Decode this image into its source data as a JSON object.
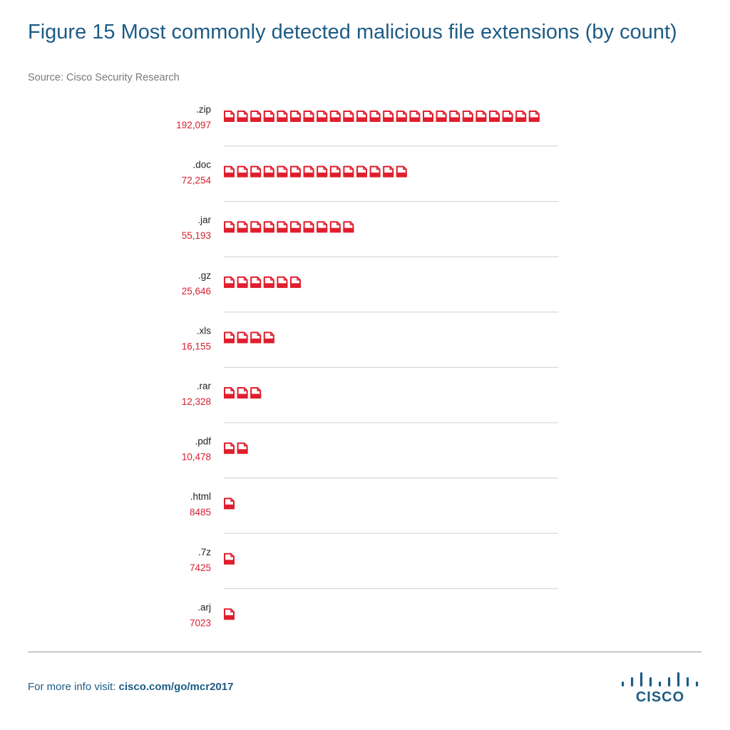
{
  "header": {
    "title": "Figure 15  Most commonly detected malicious file extensions (by count)",
    "source": "Source: Cisco Security Research"
  },
  "footer": {
    "prefix": "For more info visit: ",
    "url": "cisco.com/go/mcr2017",
    "logo_text": "CISCO"
  },
  "colors": {
    "icon": "#e01e2d",
    "value_label": "#d6202f",
    "category_label": "#222222",
    "separator": "#d0d0d0"
  },
  "chart_data": {
    "type": "bar",
    "style": "pictogram",
    "icon": "file-icon",
    "title": "Most commonly detected malicious file extensions (by count)",
    "categories": [
      ".zip",
      ".doc",
      ".jar",
      ".gz",
      ".xls",
      ".rar",
      ".pdf",
      ".html",
      ".7z",
      ".arj"
    ],
    "values": [
      192097,
      72254,
      55193,
      25646,
      16155,
      12328,
      10478,
      8485,
      7425,
      7023
    ],
    "value_labels": [
      "192,097",
      "72,254",
      "55,193",
      "25,646",
      "16,155",
      "12,328",
      "10,478",
      "8485",
      "7425",
      "7023"
    ],
    "icon_counts": [
      24,
      14,
      10,
      6,
      4,
      3,
      2,
      1,
      1,
      1
    ],
    "grid": false,
    "legend": "none"
  }
}
